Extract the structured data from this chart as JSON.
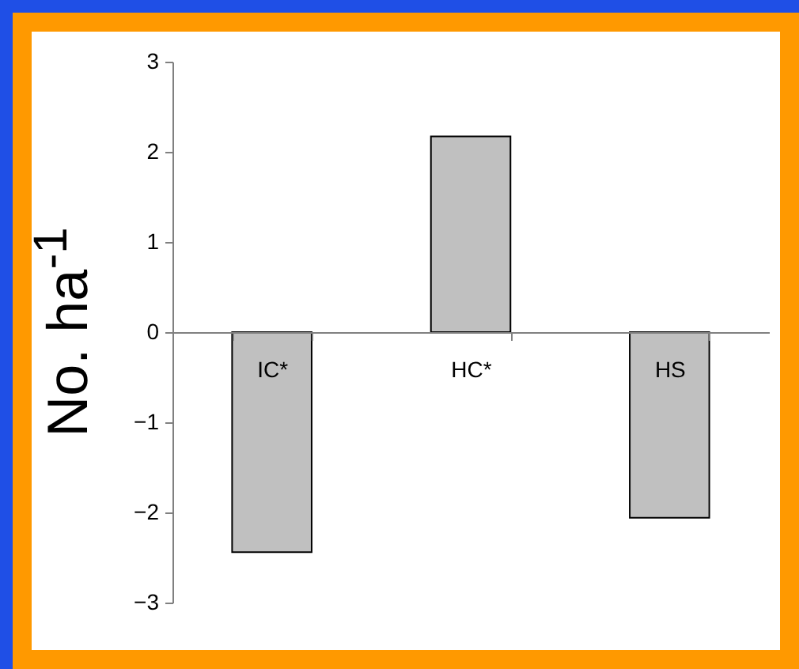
{
  "chart_data": {
    "type": "bar",
    "ylabel": "No. ha$^{-1}$",
    "categories": [
      "IC*",
      "HC*",
      "HS"
    ],
    "values": [
      -2.44,
      2.17,
      -2.06
    ],
    "color": "#c0c0c0",
    "ylim": [
      -3,
      3
    ],
    "yticks": [
      -3,
      -2,
      -1,
      0,
      1,
      2,
      3
    ]
  }
}
